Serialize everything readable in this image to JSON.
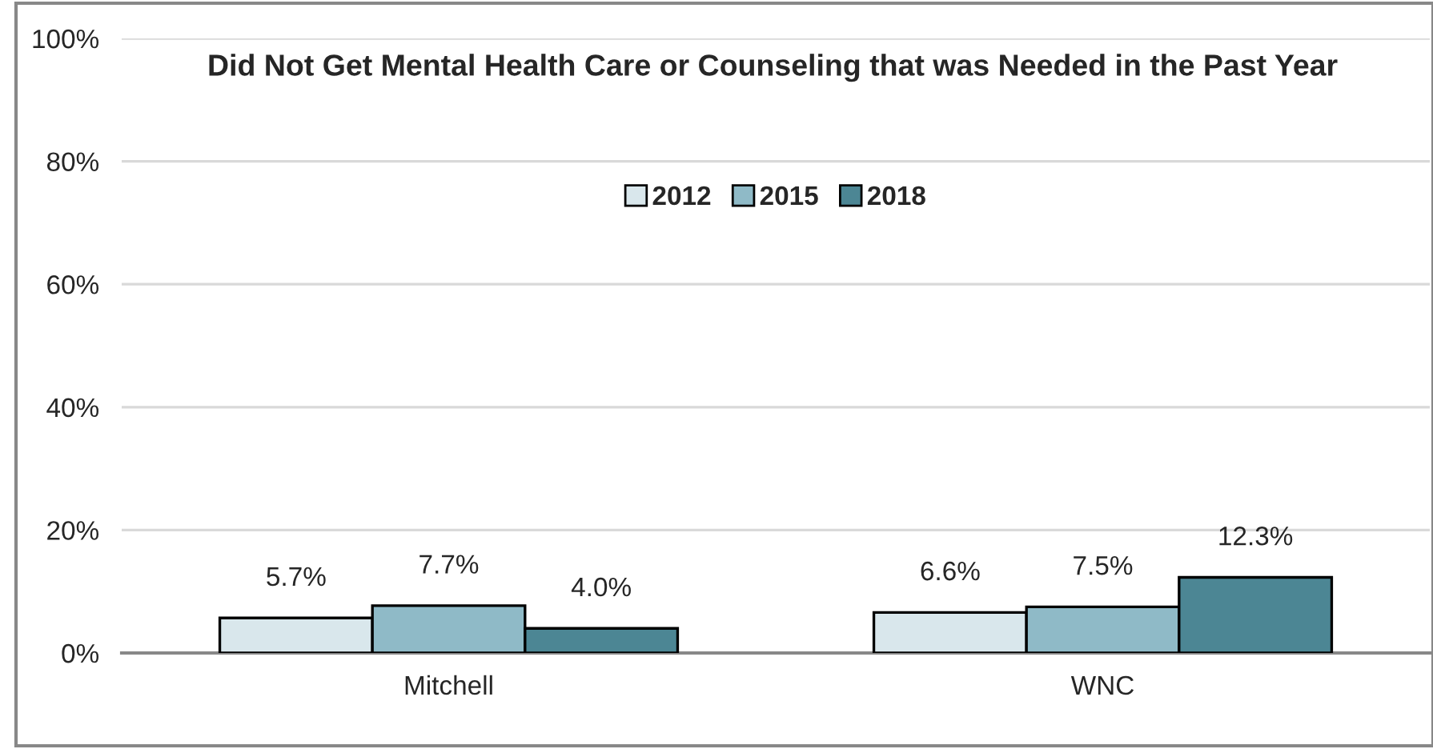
{
  "chart_data": {
    "type": "bar",
    "title": "Did Not Get Mental Health Care or Counseling that was Needed in the Past Year",
    "categories": [
      "Mitchell",
      "WNC"
    ],
    "series": [
      {
        "name": "2012",
        "color": "#d9e7ec",
        "values": [
          5.7,
          6.6
        ],
        "value_labels": [
          "5.7%",
          "6.6%"
        ]
      },
      {
        "name": "2015",
        "color": "#8fbac7",
        "values": [
          7.7,
          7.5
        ],
        "value_labels": [
          "7.7%",
          "7.5%"
        ]
      },
      {
        "name": "2018",
        "color": "#4c8694",
        "values": [
          4.0,
          12.3
        ],
        "value_labels": [
          "4.0%",
          "12.3%"
        ]
      }
    ],
    "ylim": [
      0,
      100
    ],
    "yticks": [
      {
        "value": 0,
        "label": "0%"
      },
      {
        "value": 20,
        "label": "20%"
      },
      {
        "value": 40,
        "label": "40%"
      },
      {
        "value": 60,
        "label": "60%"
      },
      {
        "value": 80,
        "label": "80%"
      },
      {
        "value": 100,
        "label": "100%"
      }
    ],
    "grid": "y",
    "legend": "top"
  }
}
